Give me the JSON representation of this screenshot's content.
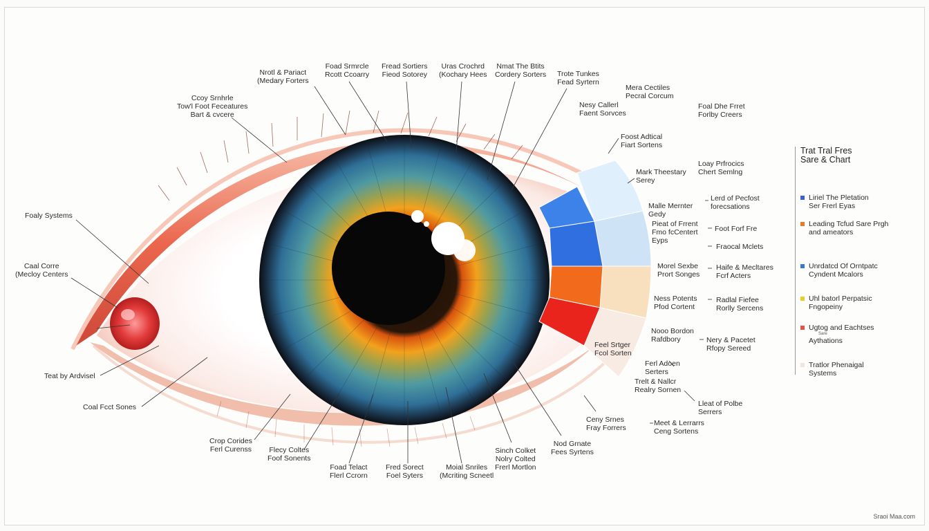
{
  "labels": {
    "top_1": [
      "Nrotl & Pariact",
      "(Medary Forters"
    ],
    "top_2": [
      "Foad Srmrcle",
      "Rcott Ccoarry"
    ],
    "top_3": [
      "Fread Sortiers",
      "Fieod Sotorey"
    ],
    "top_4": [
      "Uras Crochrd",
      "(Kochary Hees"
    ],
    "top_5": [
      "Nmat The Btits",
      "Cordery Sorters"
    ],
    "top_6": [
      "Trote Tunkes",
      "Fead Syrtern"
    ],
    "top_left_1": [
      "Ccoy Srnhrle",
      "Tow'l Foot Feceatures",
      "Bart & cvcere"
    ],
    "right_top_1": [
      "Mera Cectiles",
      "Pecral Corcum"
    ],
    "right_top_2": [
      "Nesy Callerl",
      "Faent Sorvces"
    ],
    "right_top_3": [
      "Foal Dhe Frret",
      "Forlby Creers"
    ],
    "right_1": [
      "Foost Adtical",
      "Fiart Sortens"
    ],
    "right_2": [
      "Mark Theestary",
      "Serey"
    ],
    "right_3": [
      "Loay Prfrocics",
      "Chert Semlng"
    ],
    "right_4": [
      "Malle Mernter",
      "Gedy"
    ],
    "right_5": [
      "Lerd of Pecfost",
      "forecsations"
    ],
    "right_6": [
      "Pieat of Frrent",
      "Fmo fcCentert",
      "Eyps"
    ],
    "right_7": [
      "Foot Forf Fre"
    ],
    "right_8": [
      "Fraocal Mclets"
    ],
    "right_9": [
      "Morel Sexbe",
      "Prort Songes"
    ],
    "right_10": [
      "Haife & Mecltares",
      "Fcrf Acters"
    ],
    "right_11": [
      "Ness Potents",
      "Pfod Cortent"
    ],
    "right_12": [
      "Radlal Fiefee",
      "Rorlly Sercens"
    ],
    "right_13": [
      "Nooo Bordon",
      "Rafdbory"
    ],
    "right_14": [
      "Nery & Pacetet",
      "Rfopy Sereed"
    ],
    "right_15": [
      "Feel Srtger",
      "Fcol Sorten"
    ],
    "right_16": [
      "Ferl Adoen",
      "Serters"
    ],
    "right_17": [
      "Trelt & Nallcr",
      "Realry Sornen"
    ],
    "right_18": [
      "Lleat of Polbe",
      "Serrers"
    ],
    "right_19": [
      "Ceny Srnes",
      "Fray Forrers"
    ],
    "right_20": [
      "Meet & Lerrarrs",
      "Ceng Sortens"
    ],
    "left_1": [
      "Foaly Systems"
    ],
    "left_2": [
      "Caal Corre",
      "(Mecloy Centers"
    ],
    "left_3": [
      "Teat by Ardvisel"
    ],
    "left_4": [
      "Coal Fcct Sones"
    ],
    "bottom_1": [
      "Crop Corides",
      "Ferl Curenss"
    ],
    "bottom_2": [
      "Flecy Coltes",
      "Foof Sonents"
    ],
    "bottom_3": [
      "Foad Telact",
      "Flerl Ccrorn"
    ],
    "bottom_4": [
      "Fred Sorect",
      "Foel Syters"
    ],
    "bottom_5": [
      "Moial Snriles",
      "(Mcriting Scneetl"
    ],
    "bottom_6": [
      "Sinch Colket",
      "Nolry Colted",
      "Frerl Mortlon"
    ],
    "bottom_7": [
      "Nod Grnate",
      "Fees Syrtens"
    ]
  },
  "legend": {
    "title": [
      "Trat Tral Fres",
      "Sare & Chart"
    ],
    "items": [
      {
        "color": "#3a5fcf",
        "lines": [
          "Liriel The Pletation",
          "Ser Frerl Eyas"
        ]
      },
      {
        "color": "#e97a2b",
        "lines": [
          "Leading Tcfud Sare Prgh",
          "and ameators"
        ]
      },
      {
        "color": "#3c78c8",
        "lines": [
          "Unrdatcd Of Orntpatc",
          "Cyndent Mcalors"
        ]
      },
      {
        "color": "#e6cf2a",
        "lines": [
          "Uhl batorl Perpatsic",
          "Fngopeiny"
        ]
      },
      {
        "color": "#e0524a",
        "lines": [
          "Ugtog and Eachtses",
          "Aythations"
        ],
        "tiny": "Sare"
      },
      {
        "color": "#f0e6dc",
        "lines": [
          "Tratlor Phenaigal",
          "Systems"
        ]
      }
    ]
  },
  "watermark": "Sraoi Maa.com",
  "colors": {
    "wedge_blue_dark": "#2f6fe0",
    "wedge_blue_mid": "#3d82e8",
    "wedge_orange": "#f26a1b",
    "wedge_red": "#e8241c",
    "outer_light_blue": "#d6ebfb",
    "outer_pale_blue": "#cfe3f6",
    "outer_peach": "#f8e0bf",
    "outer_cream": "#f7ebe4"
  }
}
